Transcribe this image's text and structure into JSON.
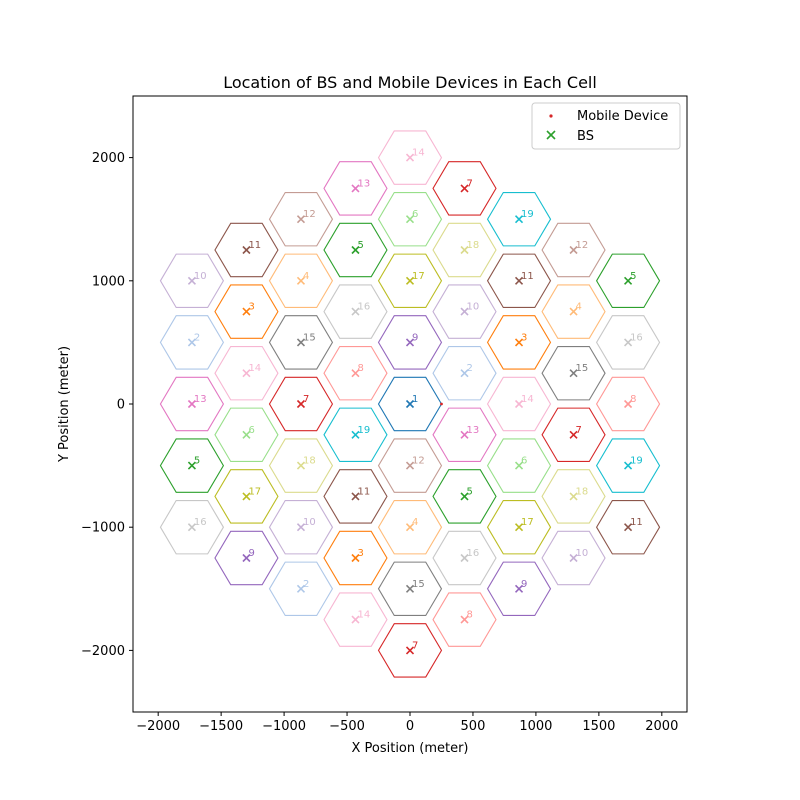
{
  "chart_data": {
    "type": "scatter",
    "title": "Location of BS and Mobile Devices in Each Cell",
    "xlabel": "X Position (meter)",
    "ylabel": "Y Position (meter)",
    "xlim": [
      -2200,
      2200
    ],
    "ylim": [
      -2500,
      2500
    ],
    "xticks": [
      -2000,
      -1500,
      -1000,
      -500,
      0,
      500,
      1000,
      1500,
      2000
    ],
    "yticks": [
      -2000,
      -1000,
      0,
      1000,
      2000
    ],
    "xtick_labels": [
      "−2000",
      "−1500",
      "−1000",
      "−500",
      "0",
      "500",
      "1000",
      "1500",
      "2000"
    ],
    "ytick_labels": [
      "−2000",
      "−1000",
      "0",
      "1000",
      "2000"
    ],
    "grid": false,
    "legend_position": "top-right",
    "legend": [
      {
        "label": "Mobile Device",
        "marker": "dot",
        "color": "#d62728"
      },
      {
        "label": "BS",
        "marker": "x",
        "color": "#2ca02c"
      }
    ],
    "hex_radius": 250,
    "palette": {
      "1": "#1f77b4",
      "2": "#aec7e8",
      "3": "#ff7f0e",
      "4": "#ffbb78",
      "5": "#2ca02c",
      "6": "#98df8a",
      "7": "#d62728",
      "8": "#ff9896",
      "9": "#9467bd",
      "10": "#c5b0d5",
      "11": "#8c564b",
      "12": "#c49c94",
      "13": "#e377c2",
      "14": "#f7b6d2",
      "15": "#7f7f7f",
      "16": "#c7c7c7",
      "17": "#bcbd22",
      "18": "#dbdb8d",
      "19": "#17becf"
    },
    "base_stations": [
      {
        "cell": "14",
        "x": 0,
        "y": 2000
      },
      {
        "cell": "13",
        "x": -433,
        "y": 1750
      },
      {
        "cell": "7",
        "x": 433,
        "y": 1750
      },
      {
        "cell": "12",
        "x": -866,
        "y": 1500
      },
      {
        "cell": "6",
        "x": 0,
        "y": 1500
      },
      {
        "cell": "19",
        "x": 866,
        "y": 1500
      },
      {
        "cell": "11",
        "x": -1299,
        "y": 1250
      },
      {
        "cell": "5",
        "x": -433,
        "y": 1250
      },
      {
        "cell": "18",
        "x": 433,
        "y": 1250
      },
      {
        "cell": "12",
        "x": 1299,
        "y": 1250
      },
      {
        "cell": "10",
        "x": -1732,
        "y": 1000
      },
      {
        "cell": "4",
        "x": -866,
        "y": 1000
      },
      {
        "cell": "17",
        "x": 0,
        "y": 1000
      },
      {
        "cell": "11",
        "x": 866,
        "y": 1000
      },
      {
        "cell": "5",
        "x": 1732,
        "y": 1000
      },
      {
        "cell": "3",
        "x": -1299,
        "y": 750
      },
      {
        "cell": "16",
        "x": -433,
        "y": 750
      },
      {
        "cell": "10",
        "x": 433,
        "y": 750
      },
      {
        "cell": "4",
        "x": 1299,
        "y": 750
      },
      {
        "cell": "2",
        "x": -1732,
        "y": 500
      },
      {
        "cell": "15",
        "x": -866,
        "y": 500
      },
      {
        "cell": "9",
        "x": 0,
        "y": 500
      },
      {
        "cell": "3",
        "x": 866,
        "y": 500
      },
      {
        "cell": "16",
        "x": 1732,
        "y": 500
      },
      {
        "cell": "14",
        "x": -1299,
        "y": 250
      },
      {
        "cell": "8",
        "x": -433,
        "y": 250
      },
      {
        "cell": "2",
        "x": 433,
        "y": 250
      },
      {
        "cell": "15",
        "x": 1299,
        "y": 250
      },
      {
        "cell": "13",
        "x": -1732,
        "y": 0
      },
      {
        "cell": "7",
        "x": -866,
        "y": 0
      },
      {
        "cell": "1",
        "x": 0,
        "y": 0
      },
      {
        "cell": "14",
        "x": 866,
        "y": 0
      },
      {
        "cell": "8",
        "x": 1732,
        "y": 0
      },
      {
        "cell": "6",
        "x": -1299,
        "y": -250
      },
      {
        "cell": "19",
        "x": -433,
        "y": -250
      },
      {
        "cell": "13",
        "x": 433,
        "y": -250
      },
      {
        "cell": "7",
        "x": 1299,
        "y": -250
      },
      {
        "cell": "5",
        "x": -1732,
        "y": -500
      },
      {
        "cell": "18",
        "x": -866,
        "y": -500
      },
      {
        "cell": "12",
        "x": 0,
        "y": -500
      },
      {
        "cell": "6",
        "x": 866,
        "y": -500
      },
      {
        "cell": "19",
        "x": 1732,
        "y": -500
      },
      {
        "cell": "17",
        "x": -1299,
        "y": -750
      },
      {
        "cell": "11",
        "x": -433,
        "y": -750
      },
      {
        "cell": "5",
        "x": 433,
        "y": -750
      },
      {
        "cell": "18",
        "x": 1299,
        "y": -750
      },
      {
        "cell": "16",
        "x": -1732,
        "y": -1000
      },
      {
        "cell": "10",
        "x": -866,
        "y": -1000
      },
      {
        "cell": "4",
        "x": 0,
        "y": -1000
      },
      {
        "cell": "17",
        "x": 866,
        "y": -1000
      },
      {
        "cell": "11",
        "x": 1732,
        "y": -1000
      },
      {
        "cell": "9",
        "x": -1299,
        "y": -1250
      },
      {
        "cell": "3",
        "x": -433,
        "y": -1250
      },
      {
        "cell": "16",
        "x": 433,
        "y": -1250
      },
      {
        "cell": "10",
        "x": 1299,
        "y": -1250
      },
      {
        "cell": "2",
        "x": -866,
        "y": -1500
      },
      {
        "cell": "15",
        "x": 0,
        "y": -1500
      },
      {
        "cell": "9",
        "x": 866,
        "y": -1500
      },
      {
        "cell": "14",
        "x": -433,
        "y": -1750
      },
      {
        "cell": "8",
        "x": 433,
        "y": -1750
      },
      {
        "cell": "7",
        "x": 0,
        "y": -2000
      }
    ],
    "mobile_devices": [
      {
        "x": 250,
        "y": 0
      }
    ]
  }
}
